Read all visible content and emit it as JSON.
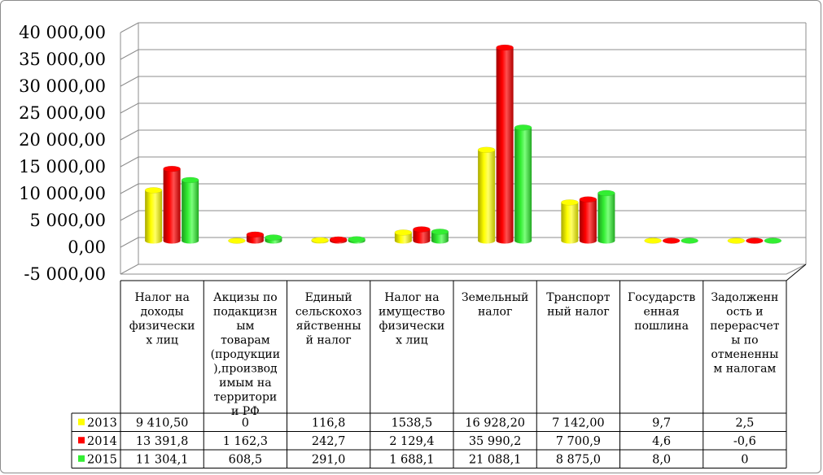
{
  "chart_data": {
    "type": "bar",
    "title": "",
    "xlabel": "",
    "ylabel": "",
    "ylim": [
      -5000,
      40000
    ],
    "y_ticks": [
      -5000,
      0,
      5000,
      10000,
      15000,
      20000,
      25000,
      30000,
      35000,
      40000
    ],
    "y_tick_labels": [
      "-5 000,00",
      "0,00",
      "5 000,00",
      "10 000,00",
      "15 000,00",
      "20 000,00",
      "25 000,00",
      "30 000,00",
      "35 000,00",
      "40 000,00"
    ],
    "grid": true,
    "legend": "in data table, left column",
    "categories": [
      "Налог на доходы физических лиц",
      "Акцизы по подакцизным товарам (продукции), производимым на территории РФ",
      "Единый сельскохозяйственный налог",
      "Налог на имущество физических лиц",
      "Земельный налог",
      "Транспортный налог",
      "Государственная пошлина",
      "Задолженность и перерасчеты по отмененным налогам"
    ],
    "category_lines": [
      [
        "Налог на",
        "доходы",
        "физически",
        "х лиц"
      ],
      [
        "Акцизы по",
        "подакцизн",
        "ым",
        "товарам",
        "(продукции",
        "),производ",
        "имым на",
        "территори",
        "и РФ"
      ],
      [
        "Единый",
        "сельскохоз",
        "яйственны",
        "й налог"
      ],
      [
        "Налог на",
        "имущество",
        "физически",
        "х лиц"
      ],
      [
        "Земельный",
        "налог"
      ],
      [
        "Транспорт",
        "ный налог"
      ],
      [
        "Государств",
        "енная",
        "пошлина"
      ],
      [
        "Задолженн",
        "ость и",
        "перерасчет",
        "ы по",
        "отмененны",
        "м налогам"
      ]
    ],
    "series": [
      {
        "name": "2013",
        "color": "#ffff00",
        "values": [
          9410.5,
          0,
          116.8,
          1538.5,
          16928.2,
          7142.0,
          9.7,
          2.5
        ],
        "labels": [
          "9 410,50",
          "0",
          "116,8",
          "1538,5",
          "16 928,20",
          "7 142,00",
          "9,7",
          "2,5"
        ]
      },
      {
        "name": "2014",
        "color": "#ff0000",
        "values": [
          13391.8,
          1162.3,
          242.7,
          2129.4,
          35990.2,
          7700.9,
          4.6,
          -0.6
        ],
        "labels": [
          "13 391,8",
          "1 162,3",
          "242,7",
          "2 129,4",
          "35 990,2",
          "7 700,9",
          "4,6",
          "-0,6"
        ]
      },
      {
        "name": "2015",
        "color": "#33ee33",
        "values": [
          11304.1,
          608.5,
          291.0,
          1688.1,
          21088.1,
          8875.0,
          8.0,
          0
        ],
        "labels": [
          "11 304,1",
          "608,5",
          "291,0",
          "1 688,1",
          "21 088,1",
          "8 875,0",
          "8,0",
          "0"
        ]
      }
    ]
  }
}
